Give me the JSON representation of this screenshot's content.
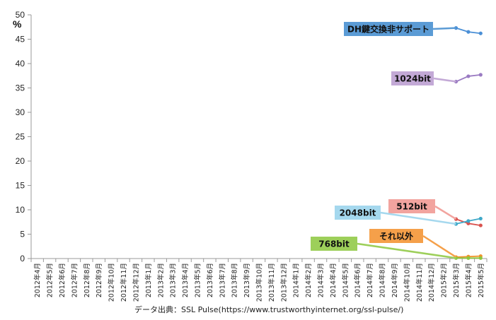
{
  "chart_data": {
    "type": "line",
    "unit_label": "%",
    "ylim": [
      0,
      50
    ],
    "yticks": [
      0,
      5,
      10,
      15,
      20,
      25,
      30,
      35,
      40,
      45,
      50
    ],
    "grid": false,
    "categories": [
      "2012年4月",
      "2012年5月",
      "2012年6月",
      "2012年7月",
      "2012年8月",
      "2012年9月",
      "2012年10月",
      "2012年11月",
      "2012年12月",
      "2013年1月",
      "2013年2月",
      "2013年3月",
      "2013年4月",
      "2013年5月",
      "2013年6月",
      "2013年7月",
      "2013年8月",
      "2013年9月",
      "2013年10月",
      "2013年11月",
      "2013年12月",
      "2014年1月",
      "2014年2月",
      "2014年3月",
      "2014年4月",
      "2014年5月",
      "2014年6月",
      "2014年7月",
      "2014年8月",
      "2014年9月",
      "2014年10月",
      "2014年11月",
      "2014年12月",
      "2015年2月",
      "2015年3月",
      "2015年4月",
      "2015年5月"
    ],
    "series": [
      {
        "name": "DH鍵交換非サポート",
        "color": "#4a8fd6",
        "label_bg": "#5b9bd5",
        "points": [
          [
            "2015年3月",
            47.3
          ],
          [
            "2015年4月",
            46.5
          ],
          [
            "2015年5月",
            46.2
          ]
        ]
      },
      {
        "name": "1024bit",
        "color": "#9a7bc2",
        "label_bg": "#c3a9d6",
        "points": [
          [
            "2015年3月",
            36.3
          ],
          [
            "2015年4月",
            37.4
          ],
          [
            "2015年5月",
            37.7
          ]
        ]
      },
      {
        "name": "512bit",
        "color": "#d9534f",
        "label_bg": "#f2a49f",
        "points": [
          [
            "2015年3月",
            8.1
          ],
          [
            "2015年4月",
            7.2
          ],
          [
            "2015年5月",
            6.8
          ]
        ]
      },
      {
        "name": "2048bit",
        "color": "#3ea8c8",
        "label_bg": "#a5d8ee",
        "points": [
          [
            "2015年3月",
            7.1
          ],
          [
            "2015年4月",
            7.7
          ],
          [
            "2015年5月",
            8.2
          ]
        ]
      },
      {
        "name": "それ以外",
        "color": "#f0922b",
        "label_bg": "#f5a04a",
        "points": [
          [
            "2015年3月",
            0.3
          ],
          [
            "2015年4月",
            0.4
          ],
          [
            "2015年5月",
            0.5
          ]
        ]
      },
      {
        "name": "768bit",
        "color": "#8dc63f",
        "label_bg": "#9dcf5a",
        "points": [
          [
            "2015年3月",
            0.1
          ],
          [
            "2015年4月",
            0.1
          ],
          [
            "2015年5月",
            0.1
          ]
        ]
      }
    ]
  },
  "source": "データ出典：SSL Pulse(https://www.trustworthyinternet.org/ssl-pulse/)"
}
